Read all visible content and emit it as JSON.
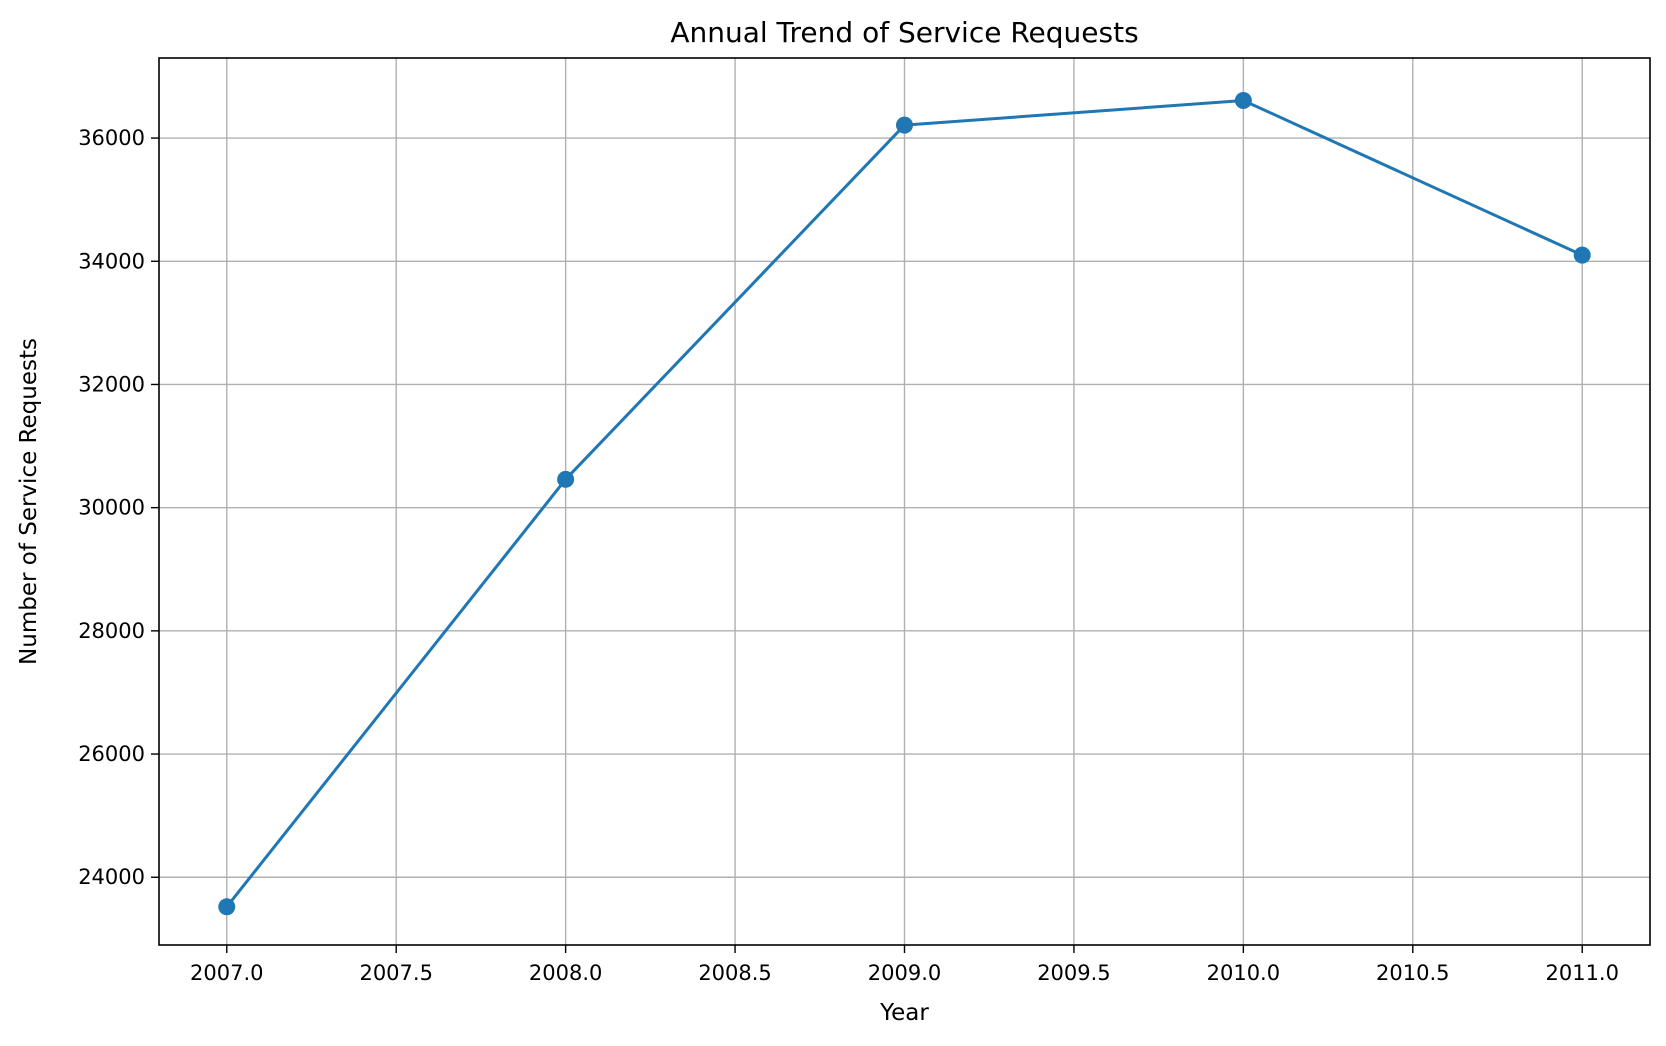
{
  "chart_data": {
    "type": "line",
    "title": "Annual Trend of Service Requests",
    "xlabel": "Year",
    "ylabel": "Number of Service Requests",
    "xlim": [
      2006.8,
      2011.2
    ],
    "ylim": [
      22900,
      37300
    ],
    "xticks": [
      2007.0,
      2007.5,
      2008.0,
      2008.5,
      2009.0,
      2009.5,
      2010.0,
      2010.5,
      2011.0
    ],
    "xtick_labels": [
      "2007.0",
      "2007.5",
      "2008.0",
      "2008.5",
      "2009.0",
      "2009.5",
      "2010.0",
      "2010.5",
      "2011.0"
    ],
    "yticks": [
      24000,
      26000,
      28000,
      30000,
      32000,
      34000,
      36000
    ],
    "ytick_labels": [
      "24000",
      "26000",
      "28000",
      "30000",
      "32000",
      "34000",
      "36000"
    ],
    "grid": true,
    "series": [
      {
        "x": [
          2007,
          2008,
          2009,
          2010,
          2011
        ],
        "y": [
          23520,
          30460,
          36210,
          36610,
          34100
        ]
      }
    ],
    "colors": {
      "line": "#1f77b4",
      "grid": "#b0b0b0",
      "axes": "#000000"
    }
  }
}
